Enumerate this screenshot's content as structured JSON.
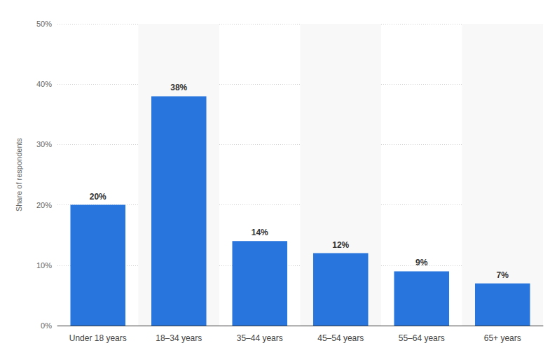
{
  "chart_data": {
    "type": "bar",
    "y_label": "Share of respondents",
    "categories": [
      "Under 18 years",
      "18–34 years",
      "35–44 years",
      "45–54 years",
      "55–64 years",
      "65+ years"
    ],
    "values": [
      20,
      38,
      14,
      12,
      9,
      7
    ],
    "value_labels": [
      "20%",
      "38%",
      "14%",
      "12%",
      "9%",
      "7%"
    ],
    "color": "#2876dd",
    "ylim": [
      0,
      50
    ],
    "yticks": [
      {
        "value": 0,
        "label": "0%"
      },
      {
        "value": 10,
        "label": "10%"
      },
      {
        "value": 20,
        "label": "20%"
      },
      {
        "value": 30,
        "label": "30%"
      },
      {
        "value": 40,
        "label": "40%"
      },
      {
        "value": 50,
        "label": "50%"
      }
    ],
    "grid": true,
    "data_labels": true
  }
}
